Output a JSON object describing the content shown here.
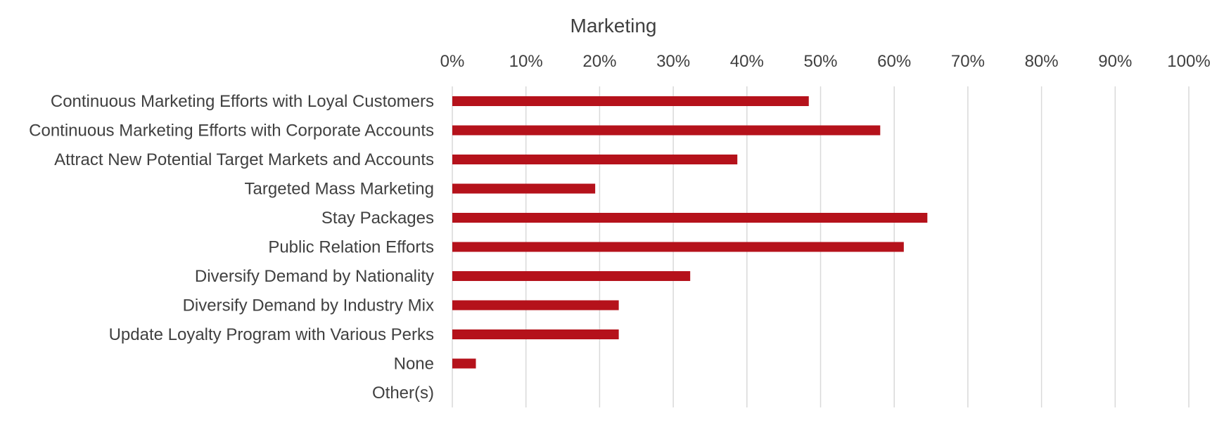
{
  "chart_data": {
    "type": "bar",
    "orientation": "horizontal",
    "title": "Marketing",
    "xlabel": "",
    "ylabel": "",
    "xlim": [
      0,
      100
    ],
    "x_ticks": [
      "0%",
      "10%",
      "20%",
      "30%",
      "40%",
      "50%",
      "60%",
      "70%",
      "80%",
      "90%",
      "100%"
    ],
    "x_axis_position": "top",
    "grid": true,
    "legend": "none",
    "bar_color": "#B5121B",
    "grid_color": "#D9D9D9",
    "text_color": "#404040",
    "categories": [
      "Continuous Marketing Efforts with Loyal Customers",
      "Continuous Marketing Efforts with Corporate Accounts",
      "Attract New Potential Target Markets and Accounts",
      "Targeted Mass Marketing",
      "Stay Packages",
      "Public Relation Efforts",
      "Diversify Demand by Nationality",
      "Diversify Demand by Industry Mix",
      "Update Loyalty Program with Various Perks",
      "None",
      "Other(s)"
    ],
    "values": [
      48.4,
      58.1,
      38.7,
      19.4,
      64.5,
      61.3,
      32.3,
      22.6,
      22.6,
      3.2,
      0
    ]
  }
}
